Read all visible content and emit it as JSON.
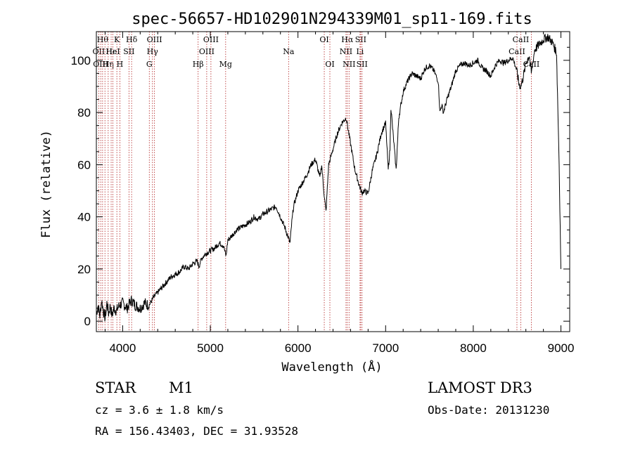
{
  "chart_data": {
    "type": "line",
    "title": "spec-56657-HD102901N294339M01_sp11-169.fits",
    "xlabel": "Wavelength (Å)",
    "ylabel": "Flux (relative)",
    "xlim": [
      3700,
      9100
    ],
    "ylim": [
      -4,
      111
    ],
    "x_ticks": [
      4000,
      5000,
      6000,
      7000,
      8000,
      9000
    ],
    "y_ticks": [
      0,
      20,
      40,
      60,
      80,
      100
    ],
    "series": [
      {
        "name": "flux",
        "x": [
          3700,
          3720,
          3740,
          3760,
          3780,
          3800,
          3820,
          3840,
          3860,
          3880,
          3900,
          3930,
          3960,
          4000,
          4050,
          4100,
          4150,
          4200,
          4250,
          4300,
          4350,
          4400,
          4450,
          4500,
          4550,
          4600,
          4650,
          4700,
          4750,
          4800,
          4850,
          4870,
          4900,
          4950,
          5000,
          5050,
          5100,
          5150,
          5180,
          5200,
          5250,
          5300,
          5350,
          5400,
          5450,
          5500,
          5550,
          5600,
          5650,
          5700,
          5750,
          5800,
          5850,
          5890,
          5910,
          5930,
          5950,
          6000,
          6050,
          6100,
          6150,
          6200,
          6250,
          6270,
          6300,
          6320,
          6350,
          6400,
          6450,
          6500,
          6550,
          6570,
          6600,
          6650,
          6700,
          6730,
          6750,
          6800,
          6850,
          6900,
          6950,
          7000,
          7030,
          7050,
          7060,
          7100,
          7120,
          7150,
          7200,
          7250,
          7300,
          7350,
          7400,
          7450,
          7500,
          7550,
          7600,
          7620,
          7640,
          7660,
          7700,
          7750,
          7800,
          7850,
          7900,
          7950,
          8000,
          8050,
          8100,
          8150,
          8200,
          8250,
          8300,
          8350,
          8400,
          8450,
          8498,
          8520,
          8542,
          8580,
          8600,
          8640,
          8662,
          8700,
          8750,
          8800,
          8850,
          8900,
          8950,
          8980,
          9000
        ],
        "values": [
          3,
          6,
          2,
          8,
          4,
          1,
          7,
          3,
          6,
          2,
          5,
          4,
          6,
          7,
          5,
          8,
          6,
          5,
          7,
          6,
          9,
          11,
          13,
          15,
          17,
          18,
          19,
          21,
          20,
          22,
          23,
          21,
          24,
          26,
          27,
          28,
          30,
          29,
          25,
          31,
          33,
          35,
          36,
          37,
          38,
          40,
          39,
          41,
          42,
          43,
          44,
          40,
          36,
          32,
          30,
          38,
          44,
          50,
          53,
          56,
          60,
          62,
          55,
          60,
          48,
          42,
          60,
          66,
          72,
          76,
          78,
          74,
          68,
          58,
          52,
          49,
          50,
          49,
          58,
          64,
          72,
          76,
          58,
          66,
          82,
          66,
          58,
          78,
          88,
          92,
          95,
          94,
          93,
          97,
          98,
          96,
          92,
          80,
          83,
          80,
          85,
          90,
          96,
          98,
          99,
          98,
          99,
          100,
          97,
          96,
          94,
          98,
          100,
          99,
          100,
          101,
          96,
          91,
          90,
          95,
          99,
          102,
          95,
          104,
          106,
          108,
          109,
          107,
          103,
          60,
          20
        ]
      }
    ],
    "lines": [
      {
        "x": 3727,
        "label": "OII",
        "row": 1
      },
      {
        "x": 3750,
        "label": "OIII",
        "row": 2
      },
      {
        "x": 3771,
        "label": "Hθ",
        "row": 0
      },
      {
        "x": 3798,
        "label": "",
        "row": -1
      },
      {
        "x": 3835,
        "label": "Hη",
        "row": 2
      },
      {
        "x": 3869,
        "label": "Hε",
        "row": 1
      },
      {
        "x": 3889,
        "label": "HeI",
        "row": 1
      },
      {
        "x": 3934,
        "label": "K",
        "row": 0
      },
      {
        "x": 3968,
        "label": "H",
        "row": 2
      },
      {
        "x": 4072,
        "label": "SII",
        "row": 1
      },
      {
        "x": 4102,
        "label": "Hδ",
        "row": 0
      },
      {
        "x": 4304,
        "label": "G",
        "row": 2
      },
      {
        "x": 4340,
        "label": "Hγ",
        "row": 1
      },
      {
        "x": 4363,
        "label": "OIII",
        "row": 0
      },
      {
        "x": 4861,
        "label": "Hβ",
        "row": 2
      },
      {
        "x": 4959,
        "label": "OIII",
        "row": 1
      },
      {
        "x": 5007,
        "label": "OIII",
        "row": 0
      },
      {
        "x": 5175,
        "label": "Mg",
        "row": 2
      },
      {
        "x": 5893,
        "label": "Na",
        "row": 1
      },
      {
        "x": 6300,
        "label": "OI",
        "row": 0
      },
      {
        "x": 6364,
        "label": "OI",
        "row": 2
      },
      {
        "x": 6548,
        "label": "NII",
        "row": 1
      },
      {
        "x": 6563,
        "label": "Hα",
        "row": 0
      },
      {
        "x": 6583,
        "label": "NII",
        "row": 2
      },
      {
        "x": 6708,
        "label": "Li",
        "row": 1
      },
      {
        "x": 6716,
        "label": "SII",
        "row": 0
      },
      {
        "x": 6731,
        "label": "SII",
        "row": 2
      },
      {
        "x": 8498,
        "label": "CaII",
        "row": 1
      },
      {
        "x": 8542,
        "label": "CaII",
        "row": 0
      },
      {
        "x": 8662,
        "label": "CaII",
        "row": 2
      }
    ]
  },
  "info": {
    "object_class": "STAR",
    "subclass": "M1",
    "survey": "LAMOST DR3",
    "redshift": "cz = 3.6 ± 1.8 km/s",
    "obs_date": "Obs-Date: 20131230",
    "coords": "RA = 156.43403, DEC =  31.93528"
  }
}
